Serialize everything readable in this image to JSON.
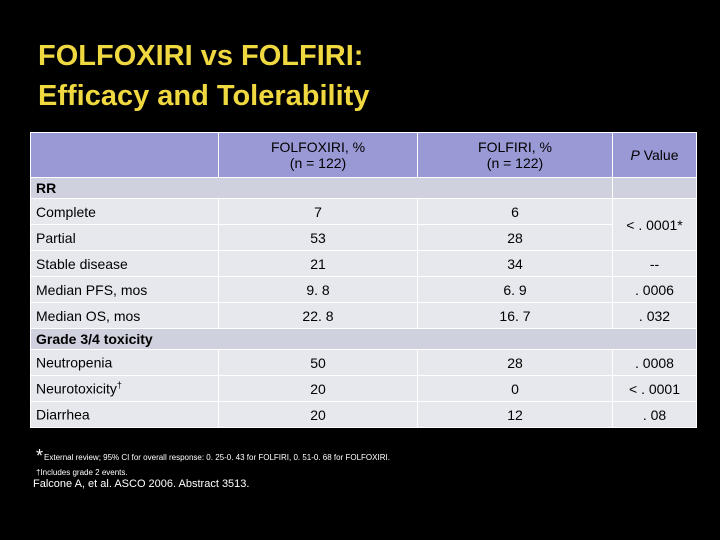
{
  "slide": {
    "title_line1": "FOLFOXIRI vs FOLFIRI:",
    "title_line2": "Efficacy and Tolerability"
  },
  "table": {
    "header": {
      "col1_line1": "FOLFOXIRI, %",
      "col1_line2": "(n = 122)",
      "col2_line1": "FOLFIRI, %",
      "col2_line2": "(n = 122)",
      "col3_p": "P",
      "col3_rest": " Value"
    },
    "section_rr": "RR",
    "rr_rows": [
      {
        "label": "Complete",
        "a": "7",
        "b": "6"
      },
      {
        "label": "Partial",
        "a": "53",
        "b": "28"
      }
    ],
    "rr_p": "< . 0001*",
    "rows": [
      {
        "label": "Stable disease",
        "a": "21",
        "b": "34",
        "p": "--"
      },
      {
        "label": "Median PFS, mos",
        "a": "9. 8",
        "b": "6. 9",
        "p": ". 0006"
      },
      {
        "label": "Median OS, mos",
        "a": "22. 8",
        "b": "16. 7",
        "p": ". 032"
      }
    ],
    "section_tox": "Grade 3/4 toxicity",
    "tox_rows": [
      {
        "label": "Neutropenia",
        "sup": "",
        "a": "50",
        "b": "28",
        "p": ". 0008"
      },
      {
        "label": "Neurotoxicity",
        "sup": "†",
        "a": "20",
        "b": "0",
        "p": "< . 0001"
      },
      {
        "label": "Diarrhea",
        "sup": "",
        "a": "20",
        "b": "12",
        "p": ". 08"
      }
    ]
  },
  "footnotes": {
    "star": "*",
    "note1": "External review; 95% CI for overall response: 0. 25-0. 43 for FOLFIRI, 0. 51-0. 68 for FOLFOXIRI.",
    "note2": "†Includes grade 2 events.",
    "citation": "Falcone A, et al. ASCO 2006. Abstract 3513."
  }
}
